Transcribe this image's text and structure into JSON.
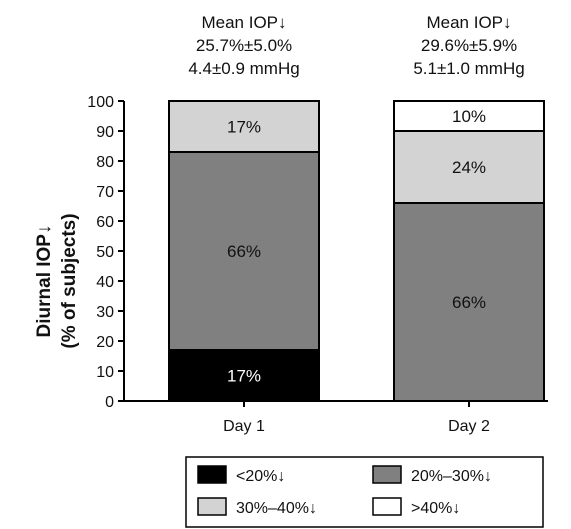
{
  "chart_data": {
    "type": "bar",
    "stacked": true,
    "categories": [
      "Day 1",
      "Day 2"
    ],
    "ylabel_lines": [
      "Diurnal IOP↓",
      "(% of subjects)"
    ],
    "ylim": [
      0,
      100
    ],
    "yticks": [
      "0",
      "10",
      "20",
      "30",
      "40",
      "50",
      "60",
      "70",
      "80",
      "90",
      "100"
    ],
    "annotations": [
      [
        "Mean IOP↓",
        "25.7%±5.0%",
        "4.4±0.9 mmHg"
      ],
      [
        "Mean IOP↓",
        "29.6%±5.9%",
        "5.1±1.0 mmHg"
      ]
    ],
    "series": [
      {
        "name": "<20%↓",
        "color": "#000000",
        "label_color": "#ffffff",
        "values": [
          17,
          0
        ],
        "labels": [
          "17%",
          ""
        ]
      },
      {
        "name": "20%–30%↓",
        "color": "#808080",
        "label_color": "#111111",
        "values": [
          66,
          66
        ],
        "labels": [
          "66%",
          "66%"
        ]
      },
      {
        "name": "30%–40%↓",
        "color": "#d3d3d3",
        "label_color": "#111111",
        "values": [
          17,
          24
        ],
        "labels": [
          "17%",
          "24%"
        ]
      },
      {
        "name": ">40%↓",
        "color": "#ffffff",
        "label_color": "#111111",
        "values": [
          0,
          10
        ],
        "labels": [
          "",
          "10%"
        ]
      }
    ],
    "grid": false,
    "legend_position": "bottom"
  }
}
